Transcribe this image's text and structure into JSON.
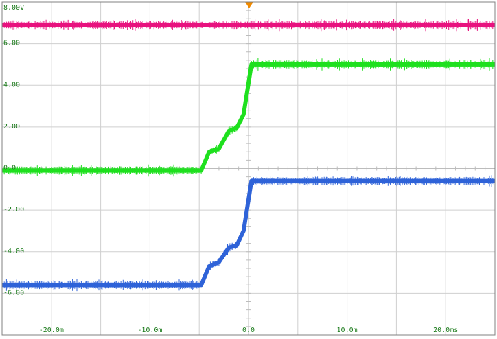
{
  "chart_data": {
    "type": "line",
    "title": "",
    "xlabel": "",
    "ylabel": "",
    "xlim": [
      -25,
      25
    ],
    "ylim": [
      -8,
      8
    ],
    "grid": true,
    "legend": "none",
    "y_tick_labels": [
      "8.00V",
      "6.00",
      "4.00",
      "2.00",
      "0.0",
      "-2.00",
      "-4.00",
      "-6.00"
    ],
    "y_tick_values": [
      8,
      6,
      4,
      2,
      0,
      -2,
      -4,
      -6
    ],
    "x_tick_labels": [
      "-20.0m",
      "-10.0m",
      "0.0",
      "10.0m",
      "20.0ms"
    ],
    "x_tick_values": [
      -20,
      -10,
      0,
      10,
      20
    ],
    "trigger_marker_x": 0,
    "series": [
      {
        "color": "#e8137f",
        "x": [
          -25,
          25
        ],
        "y": [
          6.9,
          6.9
        ]
      },
      {
        "color": "#1fe01f",
        "x": [
          -25,
          -4.8,
          -4.0,
          -3.0,
          -2.0,
          -1.2,
          -0.5,
          0.3,
          25
        ],
        "y": [
          -0.1,
          -0.1,
          0.8,
          0.95,
          1.8,
          1.95,
          2.6,
          5.0,
          5.0
        ]
      },
      {
        "color": "#2f63d8",
        "x": [
          -25,
          -4.8,
          -4.0,
          -3.0,
          -2.0,
          -1.2,
          -0.5,
          0.3,
          25
        ],
        "y": [
          -5.6,
          -5.6,
          -4.7,
          -4.5,
          -3.8,
          -3.7,
          -3.0,
          -0.6,
          -0.6
        ]
      }
    ]
  }
}
